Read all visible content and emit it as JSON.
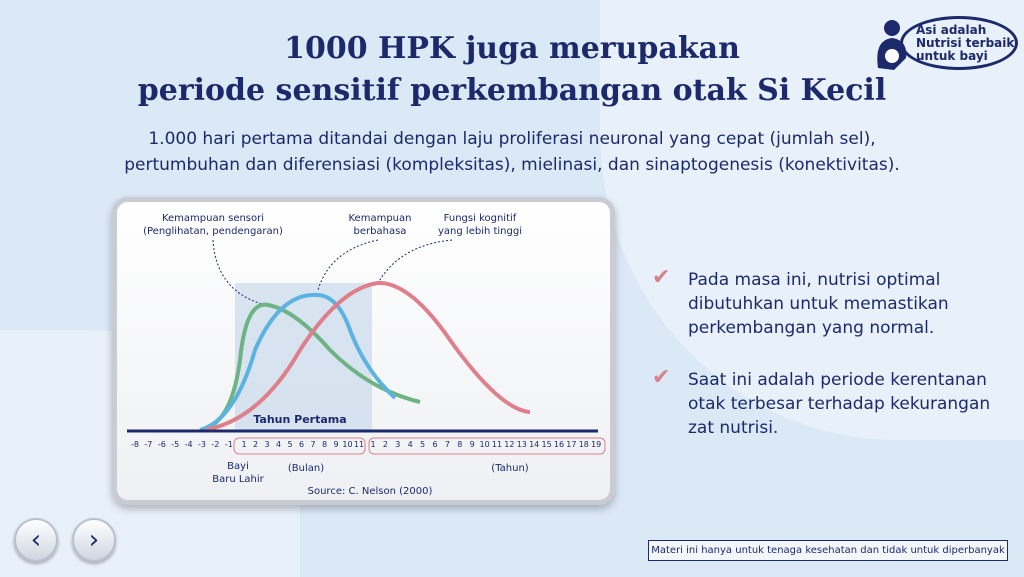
{
  "title": {
    "line1": "1000 HPK juga merupakan",
    "line2": "periode sensitif perkembangan otak Si Kecil"
  },
  "subtitle": {
    "line1": "1.000 hari pertama ditandai dengan laju proliferasi neuronal yang cepat (jumlah sel),",
    "line2": "pertumbuhan dan diferensiasi (kompleksitas), mielinasi, dan sinaptogenesis (konektivitas)."
  },
  "logo": {
    "line1": "Asi adalah",
    "line2": "Nutrisi terbaik",
    "line3": "untuk bayi"
  },
  "chart": {
    "annotations": {
      "sensory1": "Kemampuan sensori",
      "sensory2": "(Penglihatan, pendengaran)",
      "language1": "Kemampuan",
      "language2": "berbahasa",
      "cognitive1": "Fungsi kognitif",
      "cognitive2": "yang lebih tinggi"
    },
    "band_label": "Tahun Pertama",
    "prenatal_ticks": [
      "-8",
      "-7",
      "-6",
      "-5",
      "-4",
      "-3",
      "-2",
      "-1"
    ],
    "month_ticks": [
      "1",
      "2",
      "3",
      "4",
      "5",
      "6",
      "7",
      "8",
      "9",
      "10",
      "11"
    ],
    "year_ticks": [
      "1",
      "2",
      "3",
      "4",
      "5",
      "6",
      "7",
      "8",
      "9",
      "10",
      "11",
      "12",
      "13",
      "14",
      "15",
      "16",
      "17",
      "18",
      "19"
    ],
    "newborn1": "Bayi",
    "newborn2": "Baru Lahir",
    "months_label": "(Bulan)",
    "years_label": "(Tahun)",
    "source": "Source: C. Nelson (2000)",
    "colors": {
      "sensory": "#6db383",
      "language": "#5cb3e0",
      "cognitive": "#de7f8c"
    }
  },
  "bullets": [
    "Pada masa ini, nutrisi optimal dibutuhkan untuk memastikan perkembangan yang normal.",
    "Saat ini adalah periode kerentanan otak terbesar terhadap kekurangan zat nutrisi."
  ],
  "footer": "Materi ini hanya untuk tenaga kesehatan dan tidak untuk diperbanyak"
}
